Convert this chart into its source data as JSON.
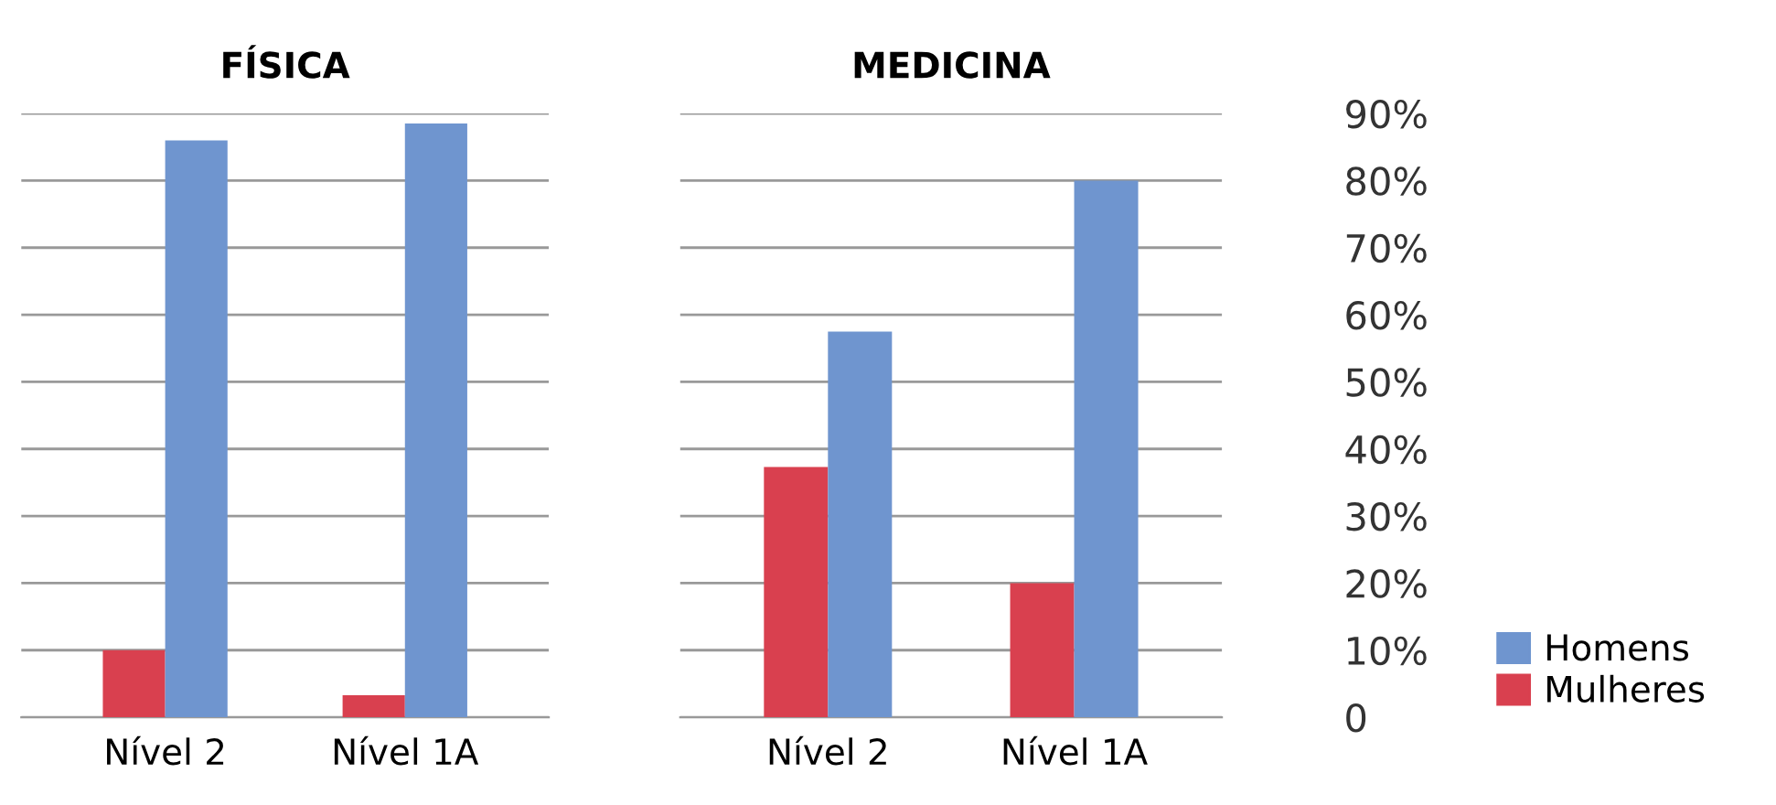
{
  "chart_data": [
    {
      "type": "bar",
      "title": "FÍSICA",
      "categories": [
        "Nível 2",
        "Nível 1A"
      ],
      "series": [
        {
          "color": "#d9404f",
          "values": [
            10,
            3.3
          ]
        },
        {
          "color": "#6f95cf",
          "values": [
            86,
            88.5
          ]
        }
      ],
      "ylim": [
        0,
        90
      ],
      "yticks": [
        {
          "value": 0,
          "label": null
        },
        {
          "value": 10,
          "label": null
        },
        {
          "value": 20,
          "label": null
        },
        {
          "value": 30,
          "label": null
        },
        {
          "value": 40,
          "label": null
        },
        {
          "value": 50,
          "label": null
        },
        {
          "value": 60,
          "label": null
        },
        {
          "value": 70,
          "label": null
        },
        {
          "value": 80,
          "label": null
        },
        {
          "value": 90,
          "label": null
        }
      ],
      "grid": "y",
      "tick_labels": "x"
    },
    {
      "type": "bar",
      "title": "MEDICINA",
      "categories": [
        "Nível 2",
        "Nível 1A"
      ],
      "series": [
        {
          "name": "Mulheres",
          "color": "#d9404f",
          "values": [
            37.3,
            20
          ]
        },
        {
          "name": "Homens",
          "color": "#6f95cf",
          "values": [
            57.5,
            80
          ]
        }
      ],
      "ylim": [
        0,
        90
      ],
      "yticks": [
        0,
        {
          "value": 10,
          "label": "10%"
        },
        {
          "value": 20,
          "label": "20%"
        },
        {
          "value": 30,
          "label": "30%"
        },
        {
          "value": 40,
          "label": "40%"
        },
        {
          "value": 50,
          "label": "50%"
        },
        {
          "value": 60,
          "label": "60%"
        },
        {
          "value": 70,
          "label": "70%"
        },
        {
          "value": 80,
          "label": "80%"
        },
        {
          "value": 90,
          "label": "90%"
        }
      ],
      "grid": "y",
      "legend": "bottom right"
    }
  ]
}
